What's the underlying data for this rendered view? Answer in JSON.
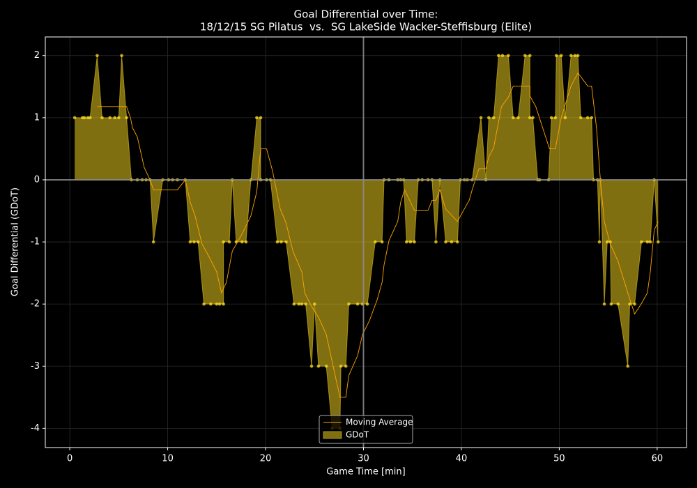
{
  "chart_data": {
    "type": "area",
    "title": "Goal Differential over Time:",
    "subtitle": "18/12/15 SG Pilatus  vs.  SG LakeSide Wacker-Steffisburg (Elite)",
    "x_label": "Game Time [min]",
    "y_label": "Goal Differential (GDoT)",
    "xlim": [
      -2.5,
      63
    ],
    "ylim": [
      -4.31,
      2.3
    ],
    "xticks": [
      0,
      10,
      20,
      30,
      40,
      50,
      60
    ],
    "yticks": [
      -4,
      -3,
      -2,
      -1,
      0,
      1,
      2
    ],
    "grid": true,
    "legend": "lower center",
    "reference_lines": {
      "x": [
        30
      ],
      "y": [
        0
      ]
    },
    "series": [
      {
        "name": "Moving Average",
        "type": "line",
        "color": "#ffa500",
        "x": [
          2.8,
          5.8,
          6.2,
          6.4,
          6.9,
          7.6,
          8.2,
          8.55,
          11.0,
          11.8,
          12.3,
          12.8,
          13.5,
          14.3,
          15.0,
          15.5,
          16.0,
          16.6,
          17.6,
          18.5,
          19.1,
          19.5,
          20.1,
          20.7,
          21.5,
          22.1,
          22.8,
          23.7,
          24.0,
          24.7,
          25.4,
          26.2,
          26.9,
          27.6,
          28.2,
          28.5,
          29.4,
          29.9,
          30.6,
          31.4,
          31.9,
          32.1,
          32.6,
          33.5,
          33.8,
          34.2,
          35.2,
          36.6,
          37.0,
          37.4,
          37.8,
          38.4,
          39.6,
          40.3,
          40.8,
          41.1,
          41.8,
          42.5,
          42.8,
          43.3,
          44.1,
          44.8,
          45.3,
          47.0,
          47.0,
          47.6,
          48.3,
          49.0,
          49.6,
          50.2,
          51.2,
          51.9,
          52.2,
          52.9,
          53.3,
          53.8,
          54.2,
          54.6,
          55.2,
          56.0,
          57.0,
          57.7,
          58.4,
          59.0,
          59.3,
          59.7,
          60.1
        ],
        "values": [
          1.18,
          1.18,
          1.0,
          0.84,
          0.69,
          0.2,
          0,
          -0.16,
          -0.16,
          0,
          -0.36,
          -0.58,
          -1.03,
          -1.26,
          -1.48,
          -1.82,
          -1.65,
          -1.15,
          -0.87,
          -0.58,
          -0.19,
          0.5,
          0.5,
          0.15,
          -0.47,
          -0.7,
          -1.15,
          -1.48,
          -1.82,
          -2.04,
          -2.21,
          -2.49,
          -3.0,
          -3.5,
          -3.5,
          -3.15,
          -2.83,
          -2.49,
          -2.27,
          -1.93,
          -1.65,
          -1.37,
          -0.98,
          -0.67,
          -0.36,
          -0.16,
          -0.49,
          -0.49,
          -0.33,
          -0.33,
          -0.16,
          -0.47,
          -0.67,
          -0.47,
          -0.33,
          -0.16,
          0.18,
          0.18,
          0.37,
          0.52,
          1.18,
          1.33,
          1.51,
          1.51,
          1.35,
          1.18,
          0.84,
          0.5,
          0.5,
          1.0,
          1.51,
          1.72,
          1.66,
          1.51,
          1.51,
          0.84,
          0,
          -0.67,
          -1.03,
          -1.31,
          -1.82,
          -2.16,
          -1.99,
          -1.82,
          -1.48,
          -0.81,
          -0.67
        ]
      },
      {
        "name": "GDoT",
        "type": "area",
        "color": "#ffdd22",
        "x": [
          0.5,
          1.3,
          1.5,
          1.85,
          2.07,
          2.8,
          3.3,
          4.1,
          4.6,
          5.0,
          5.3,
          5.8,
          6.3,
          6.9,
          7.4,
          7.8,
          8.2,
          8.55,
          9.5,
          10.1,
          10.5,
          11.0,
          11.8,
          12.3,
          12.7,
          13.1,
          13.7,
          14.4,
          15.0,
          15.3,
          15.7,
          15.7,
          16.3,
          16.6,
          17.0,
          17.6,
          18.0,
          18.5,
          19.1,
          19.5,
          19.5,
          20.1,
          20.5,
          21.2,
          21.6,
          22.1,
          22.9,
          23.4,
          23.7,
          24.1,
          24.7,
          25.0,
          25.4,
          26.2,
          26.8,
          27.6,
          27.7,
          28.2,
          28.5,
          29.4,
          29.9,
          30.4,
          31.2,
          31.9,
          32.1,
          32.6,
          33.5,
          33.8,
          34.1,
          34.4,
          34.8,
          35.2,
          35.6,
          36.0,
          36.6,
          37.0,
          37.4,
          37.8,
          38.4,
          39.0,
          39.6,
          39.9,
          40.3,
          40.6,
          41.1,
          42.0,
          42.5,
          42.8,
          43.3,
          43.8,
          44.2,
          44.8,
          45.3,
          45.8,
          46.5,
          47.0,
          47.0,
          47.3,
          47.8,
          48.0,
          48.9,
          49.2,
          49.6,
          49.7,
          50.2,
          50.6,
          51.2,
          51.6,
          51.9,
          52.2,
          52.9,
          53.3,
          53.5,
          53.9,
          54.1,
          54.2,
          54.6,
          54.9,
          55.2,
          55.3,
          56.0,
          57.0,
          57.2,
          57.7,
          58.4,
          59.0,
          59.3,
          59.7,
          60.1
        ],
        "values": [
          1,
          1,
          1,
          1,
          1,
          2,
          1,
          1,
          1,
          1,
          2,
          1,
          0,
          0,
          0,
          0,
          0,
          -1,
          0,
          0,
          0,
          0,
          0,
          -1,
          -1,
          -1,
          -2,
          -2,
          -2,
          -2,
          -2,
          -1,
          -1,
          0,
          -1,
          -1,
          -1,
          0,
          1,
          1,
          0,
          0,
          0,
          -1,
          -1,
          -1,
          -2,
          -2,
          -2,
          -2,
          -3,
          -2,
          -3,
          -3,
          -4,
          -4,
          -3,
          -3,
          -2,
          -2,
          -2,
          -2,
          -1,
          -1,
          0,
          0,
          0,
          0,
          0,
          -1,
          -1,
          -1,
          0,
          0,
          0,
          0,
          -1,
          0,
          -1,
          -1,
          -1,
          0,
          0,
          0,
          0,
          1,
          0,
          1,
          1,
          2,
          2,
          2,
          1,
          1,
          2,
          2,
          1,
          1,
          0,
          0,
          0,
          1,
          1,
          2,
          2,
          1,
          2,
          2,
          2,
          1,
          1,
          1,
          0,
          0,
          -1,
          0,
          -2,
          -1,
          -1,
          -2,
          -2,
          -3,
          -2,
          -2,
          -1,
          -1,
          -1,
          0,
          -1
        ]
      }
    ]
  }
}
